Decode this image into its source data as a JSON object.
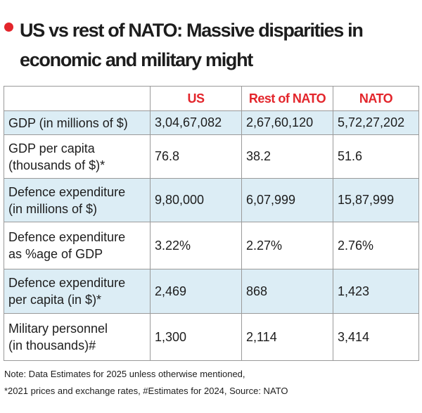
{
  "header": {
    "title": "US vs rest of NATO: Massive disparities in economic and military might"
  },
  "table": {
    "columns": [
      "US",
      "Rest of NATO",
      "NATO"
    ],
    "rows": [
      {
        "label": [
          "GDP (in millions of $)"
        ],
        "values": [
          "3,04,67,082",
          "2,67,60,120",
          "5,72,27,202"
        ]
      },
      {
        "label": [
          "GDP per capita",
          "(thousands of $)*"
        ],
        "values": [
          "76.8",
          "38.2",
          "51.6"
        ]
      },
      {
        "label": [
          "Defence expenditure",
          "(in millions of $)"
        ],
        "values": [
          "9,80,000",
          "6,07,999",
          "15,87,999"
        ]
      },
      {
        "label": [
          "Defence expenditure",
          "as %age of GDP"
        ],
        "values": [
          "3.22%",
          "2.27%",
          "2.76%"
        ]
      },
      {
        "label": [
          "Defence expenditure",
          "per capita (in $)*"
        ],
        "values": [
          "2,469",
          "868",
          "1,423"
        ]
      },
      {
        "label": [
          "Military personnel",
          "(in thousands)#"
        ],
        "values": [
          "1,300",
          "2,114",
          "3,414"
        ]
      }
    ]
  },
  "note": [
    "Note: Data Estimates for 2025 unless otherwise mentioned,",
    "*2021 prices and exchange rates, #Estimates for 2024, Source: NATO"
  ]
}
